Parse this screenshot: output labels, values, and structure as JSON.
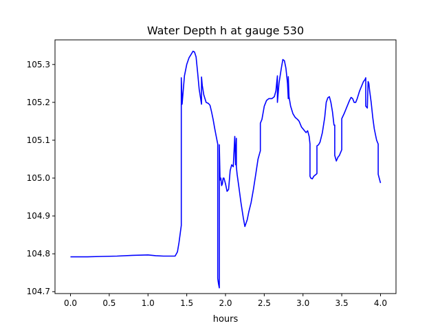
{
  "chart_data": {
    "type": "line",
    "title": "Water Depth h at gauge 530",
    "xlabel": "hours",
    "ylabel": "",
    "xlim": [
      -0.2,
      4.2
    ],
    "ylim": [
      104.695,
      105.365
    ],
    "xticks": [
      0.0,
      0.5,
      1.0,
      1.5,
      2.0,
      2.5,
      3.0,
      3.5,
      4.0
    ],
    "xtick_labels": [
      "0.0",
      "0.5",
      "1.0",
      "1.5",
      "2.0",
      "2.5",
      "3.0",
      "3.5",
      "4.0"
    ],
    "yticks": [
      104.7,
      104.8,
      104.9,
      105.0,
      105.1,
      105.2,
      105.3
    ],
    "ytick_labels": [
      "104.7",
      "104.8",
      "104.9",
      "105.0",
      "105.1",
      "105.2",
      "105.3"
    ],
    "grid": false,
    "legend": "none",
    "series": [
      {
        "color": "#0000ff",
        "x": [
          0.0,
          0.2,
          0.4,
          0.6,
          0.8,
          1.0,
          1.1,
          1.2,
          1.3,
          1.35,
          1.38,
          1.4,
          1.42,
          1.43,
          1.43,
          1.44,
          1.45,
          1.47,
          1.5,
          1.53,
          1.56,
          1.58,
          1.6,
          1.62,
          1.64,
          1.66,
          1.69,
          1.69,
          1.7,
          1.72,
          1.75,
          1.78,
          1.8,
          1.82,
          1.84,
          1.86,
          1.88,
          1.9,
          1.9,
          1.91,
          1.92,
          1.92,
          1.93,
          1.94,
          1.95,
          1.96,
          1.97,
          1.98,
          2.0,
          2.02,
          2.04,
          2.06,
          2.08,
          2.1,
          2.12,
          2.13,
          2.14,
          2.14,
          2.15,
          2.17,
          2.2,
          2.23,
          2.25,
          2.28,
          2.3,
          2.33,
          2.36,
          2.39,
          2.42,
          2.44,
          2.45,
          2.45,
          2.47,
          2.5,
          2.53,
          2.56,
          2.6,
          2.63,
          2.65,
          2.66,
          2.67,
          2.67,
          2.69,
          2.72,
          2.74,
          2.76,
          2.78,
          2.8,
          2.81,
          2.81,
          2.82,
          2.84,
          2.87,
          2.9,
          2.93,
          2.95,
          2.98,
          3.0,
          3.02,
          3.04,
          3.06,
          3.08,
          3.09,
          3.09,
          3.1,
          3.12,
          3.14,
          3.17,
          3.18,
          3.18,
          3.2,
          3.22,
          3.25,
          3.28,
          3.3,
          3.32,
          3.34,
          3.36,
          3.38,
          3.4,
          3.41,
          3.41,
          3.43,
          3.45,
          3.47,
          3.48,
          3.49,
          3.5,
          3.5,
          3.53,
          3.56,
          3.6,
          3.62,
          3.64,
          3.66,
          3.68,
          3.7,
          3.73,
          3.75,
          3.78,
          3.8,
          3.81,
          3.81,
          3.83,
          3.84,
          3.85,
          3.86,
          3.88,
          3.9,
          3.92,
          3.95,
          3.97,
          3.97,
          3.99,
          4.0
        ],
        "y": [
          104.792,
          104.792,
          104.793,
          104.794,
          104.796,
          104.797,
          104.795,
          104.794,
          104.794,
          104.794,
          104.805,
          104.83,
          104.86,
          104.875,
          105.265,
          105.195,
          105.22,
          105.27,
          105.3,
          105.318,
          105.328,
          105.335,
          105.333,
          105.32,
          105.28,
          105.235,
          105.195,
          105.267,
          105.245,
          105.22,
          105.2,
          105.197,
          105.192,
          105.175,
          105.155,
          105.132,
          105.11,
          105.09,
          104.735,
          104.72,
          104.71,
          105.088,
          104.995,
          105.0,
          104.98,
          104.985,
          105.0,
          105.0,
          104.985,
          104.965,
          104.97,
          105.02,
          105.035,
          105.03,
          105.11,
          105.035,
          105.105,
          105.03,
          105.01,
          104.98,
          104.935,
          104.895,
          104.872,
          104.89,
          104.91,
          104.935,
          104.97,
          105.01,
          105.05,
          105.065,
          105.072,
          105.145,
          105.155,
          105.19,
          105.205,
          105.21,
          105.21,
          105.215,
          105.23,
          105.25,
          105.27,
          105.2,
          105.25,
          105.29,
          105.313,
          105.31,
          105.29,
          105.25,
          105.21,
          105.268,
          105.215,
          105.19,
          105.17,
          105.16,
          105.155,
          105.15,
          105.135,
          105.13,
          105.125,
          105.12,
          105.125,
          105.11,
          105.09,
          105.005,
          105.0,
          104.998,
          105.005,
          105.01,
          105.012,
          105.085,
          105.088,
          105.095,
          105.12,
          105.16,
          105.2,
          105.212,
          105.215,
          105.2,
          105.175,
          105.14,
          105.14,
          105.06,
          105.045,
          105.055,
          105.06,
          105.065,
          105.07,
          105.075,
          105.157,
          105.17,
          105.185,
          105.205,
          105.213,
          105.21,
          105.2,
          105.2,
          105.21,
          105.23,
          105.24,
          105.255,
          105.26,
          105.265,
          105.19,
          105.185,
          105.255,
          105.25,
          105.23,
          105.2,
          105.16,
          105.13,
          105.1,
          105.09,
          105.01,
          104.995,
          104.987
        ]
      }
    ]
  }
}
